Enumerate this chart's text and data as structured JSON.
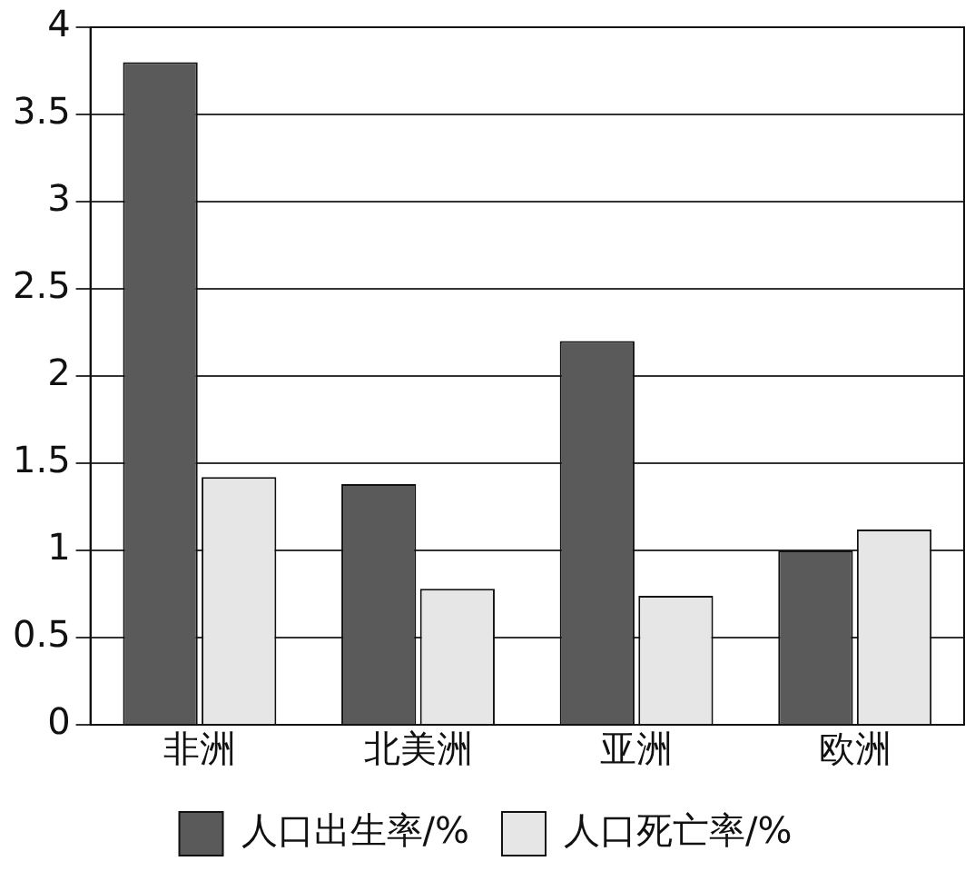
{
  "chart_data": {
    "type": "bar",
    "categories": [
      "非洲",
      "北美洲",
      "亚洲",
      "欧洲"
    ],
    "series": [
      {
        "name": "人口出生率/%",
        "color": "#5a5a5a",
        "values": [
          3.8,
          1.38,
          2.2,
          1.0
        ]
      },
      {
        "name": "人口死亡率/%",
        "color": "#e6e6e6",
        "values": [
          1.42,
          0.78,
          0.74,
          1.12
        ]
      }
    ],
    "ylim": [
      0,
      4
    ],
    "yticks": [
      0,
      0.5,
      1,
      1.5,
      2,
      2.5,
      3,
      3.5,
      4
    ],
    "grid": "y",
    "legend": "bottom"
  }
}
